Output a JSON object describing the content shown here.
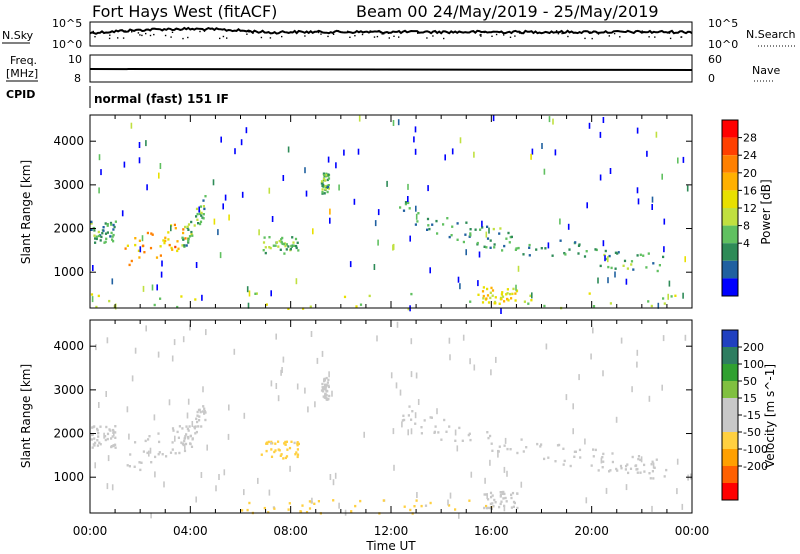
{
  "header": {
    "station": "Fort Hays West (fitACF)",
    "beam_dates": "Beam 00 24/May/2019 - 25/May/2019"
  },
  "sky_panel": {
    "label_left": "N.Sky",
    "label_right": "N.Search",
    "left_ticks": [
      "10^5",
      "10^0"
    ],
    "right_ticks": [
      "10^5",
      "10^0"
    ]
  },
  "freq_panel": {
    "label_left_1": "Freq.",
    "label_left_2": "[MHz]",
    "label_right": "Nave",
    "left_ticks": [
      "10",
      "8"
    ],
    "right_ticks": [
      "60",
      "0"
    ]
  },
  "cpid": {
    "label": "CPID",
    "mode": "normal (fast) 151 IF"
  },
  "power_legend": {
    "title": "Power [dB]",
    "ticks": [
      "28",
      "24",
      "20",
      "16",
      "12",
      "8",
      "4"
    ],
    "colors": [
      "#ff0000",
      "#ff4000",
      "#ff8000",
      "#ffb000",
      "#e8e000",
      "#c0e040",
      "#60c060",
      "#2e8b57",
      "#2060a0",
      "#0000ff"
    ]
  },
  "velocity_legend": {
    "title": "Velocity [m s^-1]",
    "ticks": [
      "200",
      "100",
      "50",
      "15",
      "-15",
      "-50",
      "-100",
      "-200"
    ],
    "colors": [
      "#2040c0",
      "#2e7d60",
      "#30a030",
      "#80c040",
      "#c8c8c8",
      "#c8c8c8",
      "#ffd040",
      "#ffa000",
      "#ff6000",
      "#ff0000"
    ]
  },
  "time_axis": {
    "label": "Time UT",
    "ticks": [
      "00:00",
      "04:00",
      "08:00",
      "12:00",
      "16:00",
      "20:00",
      "00:00"
    ]
  },
  "chart_data": [
    {
      "type": "heatmap",
      "title": "Power [dB]",
      "xlabel": "Time UT",
      "ylabel": "Slant Range [km]",
      "xlim": [
        0,
        24
      ],
      "ylim": [
        180,
        4600
      ],
      "yticks": [
        1000,
        2000,
        3000,
        4000
      ],
      "color_range": [
        0,
        32
      ],
      "regions": [
        {
          "name": "evening",
          "t0": 0,
          "t1": 1.0,
          "r0": 1700,
          "r1": 2200,
          "value": 8,
          "density": 0.55
        },
        {
          "name": "echo-core",
          "t0": 1.3,
          "t1": 4.1,
          "r0": 1100,
          "r1": 2000,
          "value": 22,
          "density": 0.8
        },
        {
          "name": "echo-tail",
          "t0": 3.6,
          "t1": 4.6,
          "r0": 1600,
          "r1": 2700,
          "value": 10,
          "density": 0.6
        },
        {
          "name": "mid-patch",
          "t0": 6.8,
          "t1": 8.3,
          "r0": 1450,
          "r1": 1850,
          "value": 11,
          "density": 0.7
        },
        {
          "name": "arc-3000",
          "t0": 9.2,
          "t1": 9.5,
          "r0": 2800,
          "r1": 3300,
          "value": 10,
          "density": 0.5
        },
        {
          "name": "morning-arc",
          "t0": 12.3,
          "t1": 23.0,
          "r0": 1000,
          "r1": 2900,
          "value": 8,
          "density": 0.6
        },
        {
          "name": "ground",
          "t0": 0,
          "t1": 24,
          "r0": 180,
          "r1": 550,
          "value": 14,
          "density": 0.35
        },
        {
          "name": "spot-16",
          "t0": 15.6,
          "t1": 17.0,
          "r0": 300,
          "r1": 700,
          "value": 18,
          "density": 0.6
        }
      ]
    },
    {
      "type": "heatmap",
      "title": "Velocity [m s^-1]",
      "xlabel": "Time UT",
      "ylabel": "Slant Range [km]",
      "xlim": [
        0,
        24
      ],
      "ylim": [
        180,
        4600
      ],
      "yticks": [
        1000,
        2000,
        3000,
        4000
      ],
      "color_range": [
        -250,
        250
      ],
      "regions": [
        {
          "name": "evening",
          "t0": 0,
          "t1": 1.0,
          "r0": 1700,
          "r1": 2200,
          "value": 0,
          "density": 0.55
        },
        {
          "name": "echo-core",
          "t0": 1.3,
          "t1": 4.1,
          "r0": 1100,
          "r1": 2000,
          "value": 0,
          "density": 0.85
        },
        {
          "name": "echo-tail",
          "t0": 3.6,
          "t1": 4.6,
          "r0": 1600,
          "r1": 2700,
          "value": 0,
          "density": 0.6
        },
        {
          "name": "mid-patch",
          "t0": 6.8,
          "t1": 8.3,
          "r0": 1450,
          "r1": 1850,
          "value": -60,
          "density": 0.75
        },
        {
          "name": "arc-3000",
          "t0": 9.2,
          "t1": 9.5,
          "r0": 2800,
          "r1": 3300,
          "value": 0,
          "density": 0.5
        },
        {
          "name": "morning-arc",
          "t0": 12.3,
          "t1": 23.0,
          "r0": 1000,
          "r1": 2900,
          "value": 0,
          "density": 0.6
        },
        {
          "name": "ground",
          "t0": 6.0,
          "t1": 16.0,
          "r0": 180,
          "r1": 500,
          "value": -60,
          "density": 0.4
        },
        {
          "name": "spot-16",
          "t0": 15.6,
          "t1": 17.0,
          "r0": 300,
          "r1": 700,
          "value": 0,
          "density": 0.6
        }
      ]
    }
  ]
}
